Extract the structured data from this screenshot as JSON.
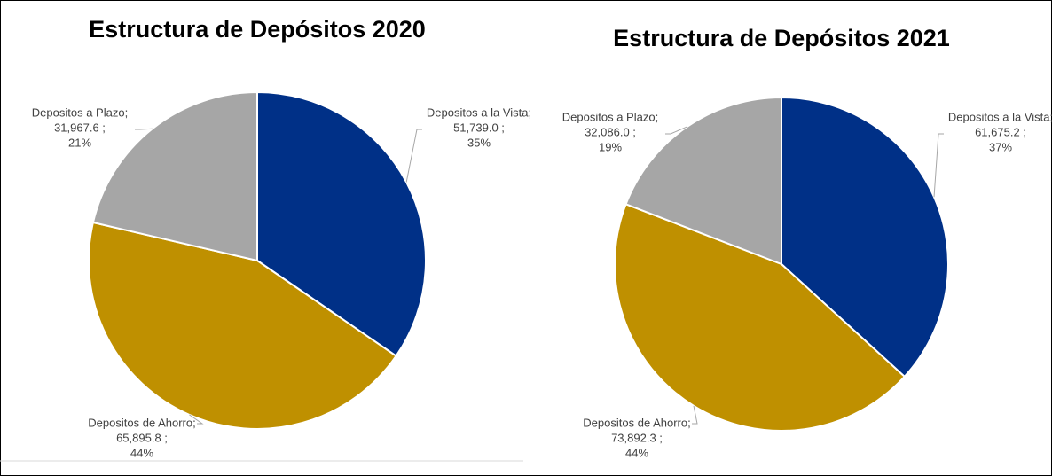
{
  "chart_data": [
    {
      "type": "pie",
      "title": "Estructura de Depósitos 2020",
      "categories": [
        "Depositos a la Vista;",
        "Depositos de Ahorro;",
        "Depositos a Plazo;"
      ],
      "values": [
        51739.0,
        65895.8,
        31967.6
      ],
      "value_labels": [
        "51,739.0 ;",
        "65,895.8 ;",
        "31,967.6 ;"
      ],
      "percents": [
        35,
        44,
        21
      ],
      "percent_labels": [
        "35%",
        "44%",
        "21%"
      ],
      "colors": [
        "#003087",
        "#bf9000",
        "#a6a6a6"
      ]
    },
    {
      "type": "pie",
      "title": "Estructura de Depósitos 2021",
      "categories": [
        "Depositos a la Vista;",
        "Depositos de Ahorro;",
        "Depositos a Plazo;"
      ],
      "values": [
        61675.2,
        73892.3,
        32086.0
      ],
      "value_labels": [
        "61,675.2 ;",
        "73,892.3 ;",
        "32,086.0 ;"
      ],
      "percents": [
        37,
        44,
        19
      ],
      "percent_labels": [
        "37%",
        "44%",
        "19%"
      ],
      "colors": [
        "#003087",
        "#bf9000",
        "#a6a6a6"
      ]
    }
  ]
}
